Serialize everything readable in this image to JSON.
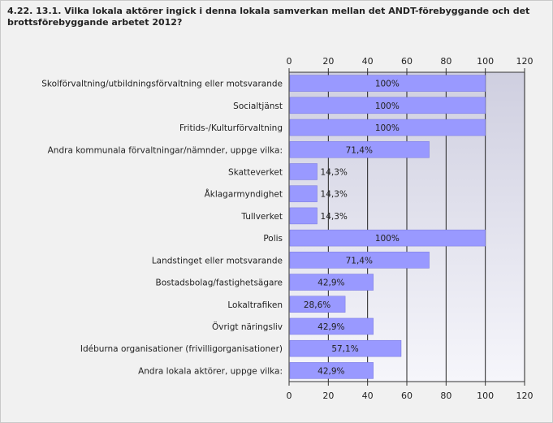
{
  "title": "4.22. 13.1. Vilka lokala aktörer ingick i denna lokala samverkan mellan det ANDT-förebyggande och det brottsförebyggande arbetet 2012?",
  "chart_data": {
    "type": "bar",
    "orientation": "horizontal",
    "categories": [
      "Skolförvaltning/utbildningsförvaltning eller motsvarande",
      "Socialtjänst",
      "Fritids-/Kulturförvaltning",
      "Andra kommunala förvaltningar/nämnder, uppge vilka:",
      "Skatteverket",
      "Åklagarmyndighet",
      "Tullverket",
      "Polis",
      "Landstinget eller motsvarande",
      "Bostadsbolag/fastighetsägare",
      "Lokaltrafiken",
      "Övrigt näringsliv",
      "Idéburna organisationer (frivilligorganisationer)",
      "Andra lokala aktörer, uppge vilka:"
    ],
    "values": [
      100,
      100,
      100,
      71.4,
      14.3,
      14.3,
      14.3,
      100,
      71.4,
      42.9,
      28.6,
      42.9,
      57.1,
      42.9
    ],
    "labels": [
      "100%",
      "100%",
      "100%",
      "71,4%",
      "14,3%",
      "14,3%",
      "14,3%",
      "100%",
      "71,4%",
      "42,9%",
      "28,6%",
      "42,9%",
      "57,1%",
      "42,9%"
    ],
    "xlim": [
      0,
      120
    ],
    "ticks": [
      "0",
      "20",
      "40",
      "60",
      "80",
      "100",
      "120"
    ],
    "grid": true,
    "colors": {
      "bar": "#9999ff",
      "bar_edge": "#7777dd",
      "plot_bg_top": "#cfcfe0",
      "plot_bg_bottom": "#f6f6fb",
      "grid": "#222222"
    }
  }
}
